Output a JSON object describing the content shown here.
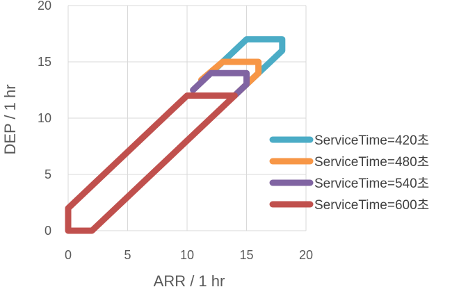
{
  "chart_data": {
    "type": "line",
    "xlabel": "ARR / 1 hr",
    "ylabel": "DEP / 1 hr",
    "xlim": [
      0,
      20
    ],
    "ylim": [
      0,
      20
    ],
    "xticks": [
      0,
      5,
      10,
      15,
      20
    ],
    "yticks": [
      0,
      5,
      10,
      15,
      20
    ],
    "grid": true,
    "legend_position": "right",
    "series": [
      {
        "name": "ServiceTime=420초",
        "color": "#4BACC6",
        "points": [
          [
            12.0,
            14.0
          ],
          [
            15.0,
            17.0
          ],
          [
            18.0,
            17.0
          ],
          [
            18.0,
            16.0
          ],
          [
            15.0,
            13.0
          ]
        ]
      },
      {
        "name": "ServiceTime=480초",
        "color": "#F79646",
        "points": [
          [
            11.2,
            13.4
          ],
          [
            13.0,
            15.0
          ],
          [
            16.0,
            15.0
          ],
          [
            16.0,
            14.0
          ],
          [
            14.0,
            12.0
          ]
        ]
      },
      {
        "name": "ServiceTime=540초",
        "color": "#8064A2",
        "points": [
          [
            10.5,
            12.5
          ],
          [
            12.0,
            14.0
          ],
          [
            15.0,
            14.0
          ],
          [
            15.0,
            13.0
          ],
          [
            14.0,
            12.0
          ]
        ]
      },
      {
        "name": "ServiceTime=600초",
        "color": "#C0504D",
        "points": [
          [
            14.0,
            12.0
          ],
          [
            10.0,
            12.0
          ],
          [
            0.0,
            2.0
          ],
          [
            0.0,
            0.0
          ],
          [
            2.0,
            0.0
          ],
          [
            14.0,
            12.0
          ]
        ]
      }
    ]
  }
}
